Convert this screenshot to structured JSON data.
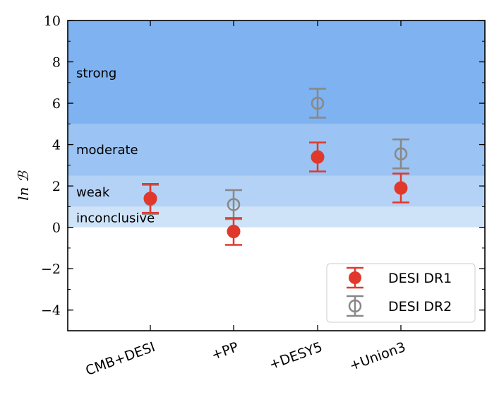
{
  "chart_data": {
    "type": "errorbar",
    "title": "",
    "xlabel": "",
    "ylabel": "ln ℬ",
    "ylim": [
      -5,
      10
    ],
    "yticks": [
      -4,
      -2,
      0,
      2,
      4,
      6,
      8,
      10
    ],
    "ytick_labels": [
      "−4",
      "−2",
      "0",
      "2",
      "4",
      "6",
      "8",
      "10"
    ],
    "categories": [
      "CMB+DESI",
      "+PP",
      "+DESY5",
      "+Union3"
    ],
    "bands": [
      {
        "label": "inconclusive",
        "from": 0,
        "to": 1,
        "color": "#cfe3f8"
      },
      {
        "label": "weak",
        "from": 1,
        "to": 2.5,
        "color": "#b4d2f5"
      },
      {
        "label": "moderate",
        "from": 2.5,
        "to": 5,
        "color": "#9bc3f3"
      },
      {
        "label": "strong",
        "from": 5,
        "to": 10,
        "color": "#7fb2f0"
      }
    ],
    "series": [
      {
        "name": "DESI DR1",
        "color": "#e0392b",
        "marker": "filled-circle",
        "values": [
          1.4,
          -0.2,
          3.4,
          1.9
        ],
        "errors": [
          0.7,
          0.65,
          0.7,
          0.7
        ]
      },
      {
        "name": "DESI DR2",
        "color": "#888888",
        "marker": "open-circle",
        "values": [
          1.35,
          1.1,
          6.0,
          3.55
        ],
        "errors": [
          0.7,
          0.7,
          0.7,
          0.7
        ]
      }
    ],
    "legend_position": "bottom-right"
  }
}
